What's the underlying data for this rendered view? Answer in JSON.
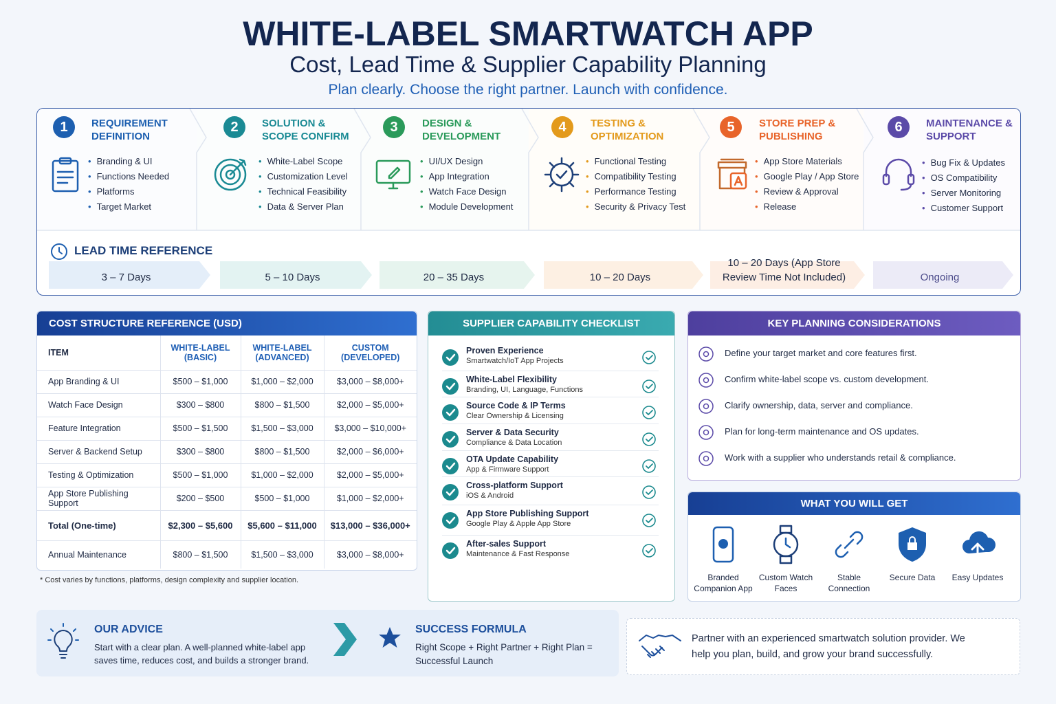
{
  "header": {
    "title": "WHITE-LABEL SMARTWATCH APP",
    "subtitle": "Cost, Lead Time & Supplier Capability Planning",
    "tagline": "Plan clearly. Choose the right partner. Launch with confidence."
  },
  "phases": [
    {
      "number": 1,
      "title": "REQUIREMENT DEFINITION",
      "items": [
        "Branding & UI",
        "Functions Needed",
        "Platforms",
        "Target Market"
      ]
    },
    {
      "number": 2,
      "title": "SOLUTION & SCOPE CONFIRM",
      "items": [
        "White-Label Scope",
        "Customization Level",
        "Technical Feasibility",
        "Data & Server Plan"
      ]
    },
    {
      "number": 3,
      "title": "DESIGN & DEVELOPMENT",
      "items": [
        "UI/UX Design",
        "App Integration",
        "Watch Face Design",
        "Module Development"
      ]
    },
    {
      "number": 4,
      "title": "TESTING & OPTIMIZATION",
      "items": [
        "Functional Testing",
        "Compatibility Testing",
        "Performance Testing",
        "Security & Privacy Test"
      ]
    },
    {
      "number": 5,
      "title": "STORE PREP & PUBLISHING",
      "items": [
        "App Store Materials",
        "Google Play / App Store",
        "Review & Approval",
        "Release"
      ]
    },
    {
      "number": 6,
      "title": "MAINTENANCE & SUPPORT",
      "items": [
        "Bug Fix & Updates",
        "OS Compatibility",
        "Server Monitoring",
        "Customer Support"
      ]
    }
  ],
  "lead_time": {
    "title": "LEAD TIME REFERENCE",
    "durations": [
      "3 – 7 Days",
      "5 – 10 Days",
      "20 – 35 Days",
      "10 – 20 Days",
      "10 – 20 Days (App Store Review Time Not Included)",
      "Ongoing"
    ]
  },
  "cost_table": {
    "title": "COST STRUCTURE REFERENCE (USD)",
    "columns": [
      "ITEM",
      "WHITE-LABEL (BASIC)",
      "WHITE-LABEL (ADVANCED)",
      "CUSTOM (DEVELOPED)"
    ],
    "rows": [
      [
        "App Branding & UI",
        "$500 – $1,000",
        "$1,000 – $2,000",
        "$3,000 – $8,000+"
      ],
      [
        "Watch Face Design",
        "$300 – $800",
        "$800 – $1,500",
        "$2,000 – $5,000+"
      ],
      [
        "Feature Integration",
        "$500 – $1,500",
        "$1,500 – $3,000",
        "$3,000 – $10,000+"
      ],
      [
        "Server & Backend Setup",
        "$300 – $800",
        "$800 – $1,500",
        "$2,000 – $6,000+"
      ],
      [
        "Testing & Optimization",
        "$500 – $1,000",
        "$1,000 – $2,000",
        "$2,000 – $5,000+"
      ],
      [
        "App Store Publishing Support",
        "$200 – $500",
        "$500 – $1,000",
        "$1,000 – $2,000+"
      ],
      [
        "Total (One-time)",
        "$2,300 – $5,600",
        "$5,600 – $11,000",
        "$13,000 – $36,000+"
      ],
      [
        "Annual Maintenance",
        "$800 – $1,500",
        "$1,500 – $3,000",
        "$3,000 – $8,000+"
      ]
    ],
    "footnote": "* Cost varies by functions, platforms, design complexity and supplier location."
  },
  "checklist": {
    "title": "SUPPLIER CAPABILITY CHECKLIST",
    "items": [
      {
        "title": "Proven Experience",
        "subtitle": "Smartwatch/IoT App Projects"
      },
      {
        "title": "White-Label Flexibility",
        "subtitle": "Branding, UI, Language, Functions"
      },
      {
        "title": "Source Code & IP Terms",
        "subtitle": "Clear Ownership & Licensing"
      },
      {
        "title": "Server & Data Security",
        "subtitle": "Compliance & Data Location"
      },
      {
        "title": "OTA Update Capability",
        "subtitle": "App & Firmware Support"
      },
      {
        "title": "Cross-platform Support",
        "subtitle": "iOS & Android"
      },
      {
        "title": "App Store Publishing Support",
        "subtitle": "Google Play & Apple App Store"
      },
      {
        "title": "After-sales Support",
        "subtitle": "Maintenance & Fast Response"
      }
    ]
  },
  "considerations": {
    "title": "KEY PLANNING CONSIDERATIONS",
    "items": [
      "Define your target market and core features first.",
      "Confirm white-label scope vs. custom development.",
      "Clarify ownership, data, server and compliance.",
      "Plan for long-term maintenance and OS updates.",
      "Work with a supplier who understands retail & compliance."
    ]
  },
  "benefits": {
    "title": "WHAT YOU WILL GET",
    "items": [
      "Branded Companion App",
      "Custom Watch Faces",
      "Stable Connection",
      "Secure Data",
      "Easy Updates"
    ]
  },
  "advice": {
    "title": "OUR ADVICE",
    "text": "Start with a clear plan. A well-planned white-label app saves time, reduces cost, and builds a stronger brand."
  },
  "success": {
    "title": "SUCCESS FORMULA",
    "text": "Right Scope + Right Partner + Right Plan = Successful Launch"
  },
  "partner": {
    "text": "Partner with an experienced smartwatch solution provider. We help you plan, build, and grow your brand successfully."
  }
}
